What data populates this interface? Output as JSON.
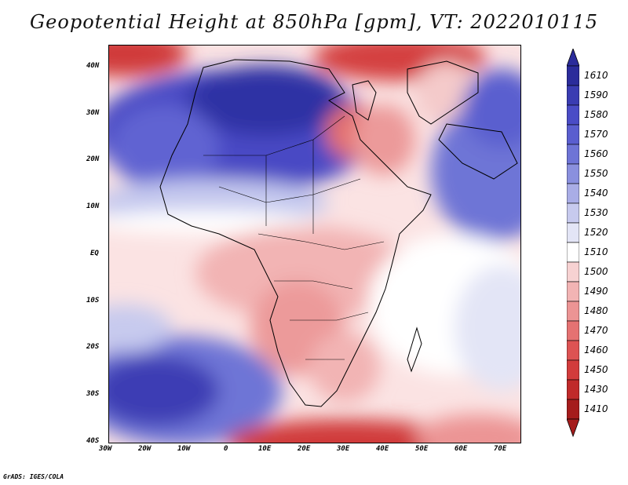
{
  "title": "Geopotential Height at 850hPa [gpm], VT: 2022010115",
  "credit": "GrADS: IGES/COLA",
  "lat_labels": [
    "40N",
    "30N",
    "20N",
    "10N",
    "EQ",
    "10S",
    "20S",
    "30S",
    "40S"
  ],
  "lon_labels": [
    "30W",
    "20W",
    "10W",
    "0",
    "10E",
    "20E",
    "30E",
    "40E",
    "50E",
    "60E",
    "70E"
  ],
  "colorbar": {
    "levels": [
      "1610",
      "1590",
      "1580",
      "1570",
      "1560",
      "1550",
      "1540",
      "1530",
      "1520",
      "1510",
      "1500",
      "1490",
      "1480",
      "1470",
      "1460",
      "1450",
      "1430",
      "1410"
    ],
    "colors": [
      "#2b2c9b",
      "#3a3cb2",
      "#4a4cc6",
      "#5a5ecf",
      "#6e74d6",
      "#8a90de",
      "#a9ade6",
      "#c7caee",
      "#e3e5f6",
      "#ffffff",
      "#f7d2d2",
      "#f2b4b4",
      "#ec9494",
      "#e57272",
      "#dd5353",
      "#d23c3c",
      "#c02a2a",
      "#a51c1c"
    ]
  },
  "icons": {
    "colorbar_top": "triangle-up-icon",
    "colorbar_bottom": "triangle-down-icon"
  }
}
